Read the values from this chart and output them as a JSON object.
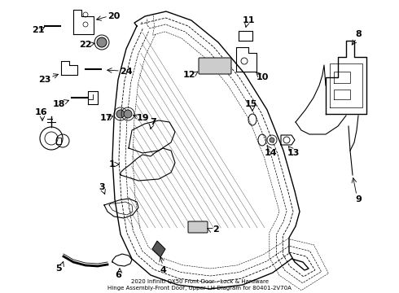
{
  "background_color": "#ffffff",
  "fig_width": 4.9,
  "fig_height": 3.6,
  "dpi": 100,
  "lc": "black",
  "lw": 0.8
}
